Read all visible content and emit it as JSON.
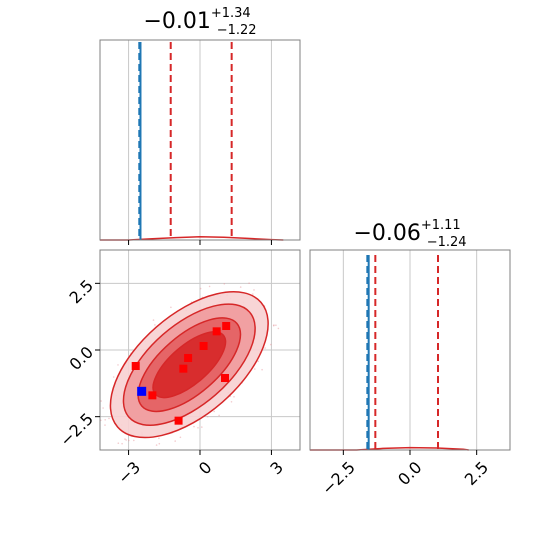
{
  "chart_data": [
    {
      "type": "histogram",
      "panel": "top-left",
      "parameter_index": 0,
      "title": {
        "median": "−0.01",
        "upper": "+1.34",
        "lower": "−1.22"
      },
      "median": -0.01,
      "err_plus": 1.34,
      "err_minus": 1.22,
      "xlim": [
        -4.2,
        4.2
      ],
      "grid": true,
      "vlines": [
        {
          "x": -2.55,
          "style": "dashed",
          "color": "#1f77b4",
          "value": -2.55
        },
        {
          "x": -2.5,
          "style": "solid",
          "color": "#1f77b4",
          "value": -2.5
        },
        {
          "x": -1.23,
          "style": "dashed",
          "color": "#d62728",
          "value": -1.23
        },
        {
          "x": 1.33,
          "style": "dashed",
          "color": "#d62728",
          "value": 1.33
        }
      ],
      "hist_curve": {
        "x": [
          -4.2,
          -3.0,
          -2.0,
          -1.0,
          0.0,
          1.0,
          2.0,
          3.0,
          3.5
        ],
        "y": [
          0.0,
          0.0,
          0.003,
          0.006,
          0.008,
          0.007,
          0.004,
          0.001,
          0.0
        ]
      },
      "ylim": [
        0,
        0.5
      ]
    },
    {
      "type": "scatter",
      "panel": "bottom-left",
      "xlim": [
        -4.2,
        4.2
      ],
      "ylim": [
        -3.75,
        3.75
      ],
      "xticks": [
        -3,
        0,
        3
      ],
      "xticklabels": [
        "−3",
        "0",
        "3"
      ],
      "yticks": [
        -2.5,
        0.0,
        2.5
      ],
      "yticklabels": [
        "−2.5",
        "0.0",
        "2.5"
      ],
      "grid": true,
      "contour_color": "#d62728",
      "markers_red": [
        {
          "x": 1.1,
          "y": 0.9
        },
        {
          "x": 0.7,
          "y": 0.7
        },
        {
          "x": 0.15,
          "y": 0.15
        },
        {
          "x": -0.5,
          "y": -0.3
        },
        {
          "x": -0.7,
          "y": -0.7
        },
        {
          "x": 1.05,
          "y": -1.05
        },
        {
          "x": -2.7,
          "y": -0.6
        },
        {
          "x": -2.0,
          "y": -1.7
        },
        {
          "x": -0.9,
          "y": -2.65
        }
      ],
      "markers_blue": [
        {
          "x": -2.45,
          "y": -1.55
        }
      ]
    },
    {
      "type": "histogram",
      "panel": "bottom-right",
      "parameter_index": 1,
      "title": {
        "median": "−0.06",
        "upper": "+1.11",
        "lower": "−1.24"
      },
      "median": -0.06,
      "err_plus": 1.11,
      "err_minus": 1.24,
      "xlim": [
        -3.75,
        3.75
      ],
      "xticks": [
        -2.5,
        0.0,
        2.5
      ],
      "xticklabels": [
        "−2.5",
        "0.0",
        "2.5"
      ],
      "grid": true,
      "vlines": [
        {
          "x": -1.6,
          "style": "dashed",
          "color": "#1f77b4",
          "value": -1.6
        },
        {
          "x": -1.55,
          "style": "solid",
          "color": "#1f77b4",
          "value": -1.55
        },
        {
          "x": -1.3,
          "style": "dashed",
          "color": "#d62728",
          "value": -1.3
        },
        {
          "x": 1.05,
          "style": "dashed",
          "color": "#d62728",
          "value": 1.05
        }
      ],
      "hist_curve": {
        "x": [
          -3.75,
          -2.0,
          -1.0,
          0.0,
          1.0,
          2.0,
          2.2
        ],
        "y": [
          0.0,
          0.0,
          0.004,
          0.006,
          0.005,
          0.002,
          0.0
        ]
      },
      "ylim": [
        0,
        0.5
      ]
    }
  ]
}
